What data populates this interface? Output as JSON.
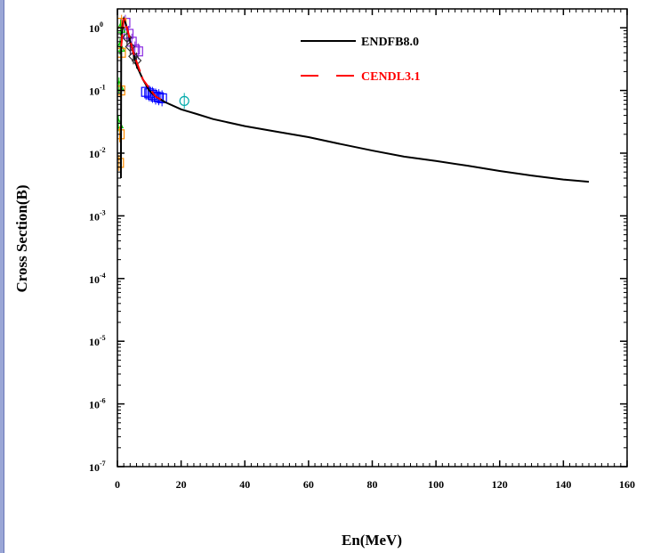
{
  "chart_data": {
    "type": "line",
    "xlabel": "En(MeV)",
    "ylabel": "Cross Section(B)",
    "xlim": [
      0,
      160
    ],
    "ylim": [
      1e-07,
      2
    ],
    "y_scale": "log",
    "x_ticks": [
      "0",
      "20",
      "40",
      "60",
      "80",
      "100",
      "120",
      "140",
      "160"
    ],
    "y_ticks": [
      {
        "base": "10",
        "exp": "0"
      },
      {
        "base": "10",
        "exp": "-1"
      },
      {
        "base": "10",
        "exp": "-2"
      },
      {
        "base": "10",
        "exp": "-3"
      },
      {
        "base": "10",
        "exp": "-4"
      },
      {
        "base": "10",
        "exp": "-5"
      },
      {
        "base": "10",
        "exp": "-6"
      },
      {
        "base": "10",
        "exp": "-7"
      }
    ],
    "legend_position": "top-right",
    "series": [
      {
        "name": "ENDFB8.0",
        "color": "#000000",
        "style": "solid",
        "x": [
          1.1,
          1.2,
          1.5,
          1.8,
          2.0,
          2.2,
          2.5,
          3,
          4,
          5,
          6,
          8,
          10,
          12,
          15,
          20,
          25,
          30,
          40,
          50,
          60,
          70,
          80,
          90,
          100,
          110,
          120,
          130,
          140,
          148
        ],
        "y": [
          0.004,
          0.5,
          1.0,
          1.3,
          1.4,
          1.3,
          1.2,
          1.0,
          0.6,
          0.4,
          0.25,
          0.15,
          0.1,
          0.08,
          0.065,
          0.05,
          0.042,
          0.035,
          0.027,
          0.022,
          0.018,
          0.014,
          0.011,
          0.0088,
          0.0075,
          0.0063,
          0.0052,
          0.0044,
          0.0038,
          0.0035
        ]
      },
      {
        "name": "CENDL3.1",
        "color": "#ff0000",
        "style": "dashed",
        "x": [
          1.2,
          2,
          3,
          5,
          8,
          12,
          15
        ],
        "y": [
          0.5,
          1.4,
          1.0,
          0.4,
          0.15,
          0.08,
          0.065
        ]
      }
    ],
    "experimental_points": [
      {
        "color": "#8a2be2",
        "marker": "square",
        "x": [
          2.5,
          3.5,
          4.5,
          5.5,
          6.5
        ],
        "y": [
          1.2,
          0.8,
          0.6,
          0.45,
          0.42
        ]
      },
      {
        "color": "#0000ff",
        "marker": "square",
        "x": [
          9,
          10,
          11,
          12,
          13,
          14
        ],
        "y": [
          0.095,
          0.09,
          0.085,
          0.08,
          0.078,
          0.075
        ]
      },
      {
        "color": "#00aaaa",
        "marker": "circle",
        "x": [
          21
        ],
        "y": [
          0.068
        ]
      },
      {
        "color": "#00cc00",
        "marker": "triangle",
        "x": [
          0.3,
          0.5,
          0.8,
          1.0
        ],
        "y": [
          0.03,
          0.12,
          0.5,
          1.0
        ]
      },
      {
        "color": "#ff8c00",
        "marker": "square",
        "x": [
          0.5,
          0.7,
          0.9,
          1.1,
          1.3
        ],
        "y": [
          0.007,
          0.02,
          0.1,
          0.4,
          1.2
        ]
      },
      {
        "color": "#333333",
        "marker": "diamond",
        "x": [
          3,
          4,
          5,
          6
        ],
        "y": [
          0.7,
          0.5,
          0.35,
          0.3
        ]
      }
    ]
  }
}
